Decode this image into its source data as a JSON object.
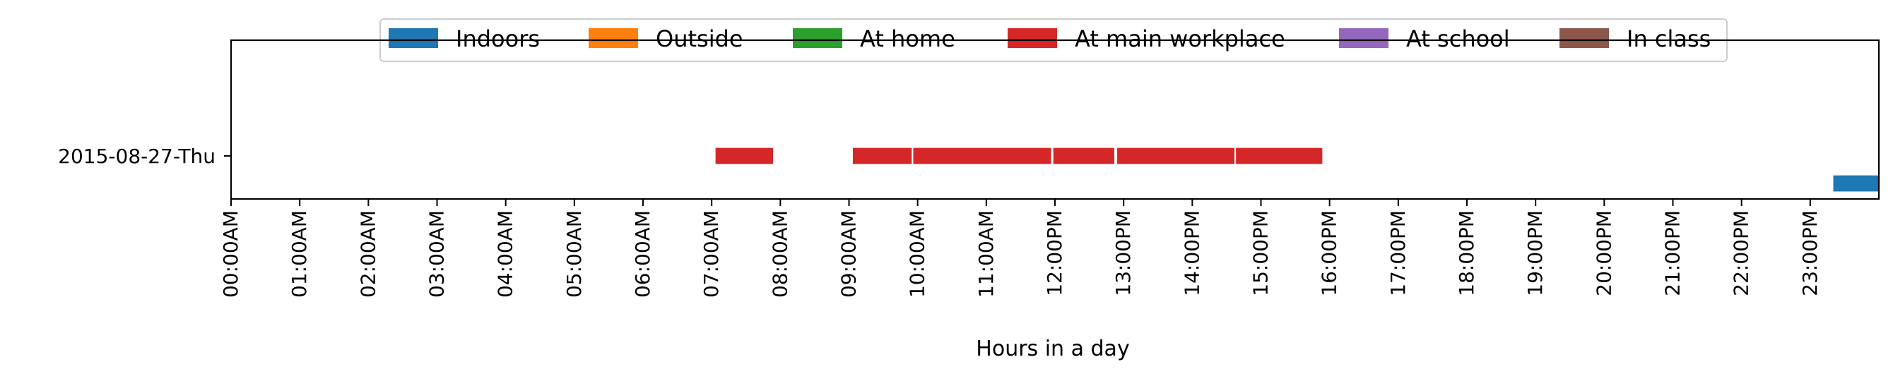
{
  "chart_data": {
    "type": "timeline",
    "title": "",
    "xlabel": "Hours in a day",
    "ylabel": "",
    "xlim": [
      0,
      24
    ],
    "grid": false,
    "legend_placement": "top-center",
    "x_ticks": [
      "00:00AM",
      "01:00AM",
      "02:00AM",
      "03:00AM",
      "04:00AM",
      "05:00AM",
      "06:00AM",
      "07:00AM",
      "08:00AM",
      "09:00AM",
      "10:00AM",
      "11:00AM",
      "12:00PM",
      "13:00PM",
      "14:00PM",
      "15:00PM",
      "16:00PM",
      "17:00PM",
      "18:00PM",
      "19:00PM",
      "20:00PM",
      "21:00PM",
      "22:00PM",
      "23:00PM"
    ],
    "categories": [
      "2015-08-27-Thu"
    ],
    "legend": [
      {
        "name": "Indoors",
        "color": "#1f77b4"
      },
      {
        "name": "Outside",
        "color": "#ff7f0e"
      },
      {
        "name": "At home",
        "color": "#2ca02c"
      },
      {
        "name": "At main workplace",
        "color": "#d62728"
      },
      {
        "name": "At school",
        "color": "#9467bd"
      },
      {
        "name": "In class",
        "color": "#8c564b"
      }
    ],
    "series": [
      {
        "name": "Indoors",
        "color": "#1f77b4",
        "segments": [
          {
            "day": "2015-08-27-Thu",
            "start": 23.33,
            "end": 24.0
          }
        ]
      },
      {
        "name": "Outside",
        "color": "#ff7f0e",
        "segments": []
      },
      {
        "name": "At home",
        "color": "#2ca02c",
        "segments": []
      },
      {
        "name": "At main workplace",
        "color": "#d62728",
        "segments": [
          {
            "day": "2015-08-27-Thu",
            "start": 7.05,
            "end": 7.9
          },
          {
            "day": "2015-08-27-Thu",
            "start": 9.05,
            "end": 9.92
          },
          {
            "day": "2015-08-27-Thu",
            "start": 9.93,
            "end": 11.95
          },
          {
            "day": "2015-08-27-Thu",
            "start": 11.97,
            "end": 12.87
          },
          {
            "day": "2015-08-27-Thu",
            "start": 12.9,
            "end": 14.62
          },
          {
            "day": "2015-08-27-Thu",
            "start": 14.63,
            "end": 15.9
          }
        ]
      },
      {
        "name": "At school",
        "color": "#9467bd",
        "segments": []
      },
      {
        "name": "In class",
        "color": "#8c564b",
        "segments": []
      }
    ]
  }
}
